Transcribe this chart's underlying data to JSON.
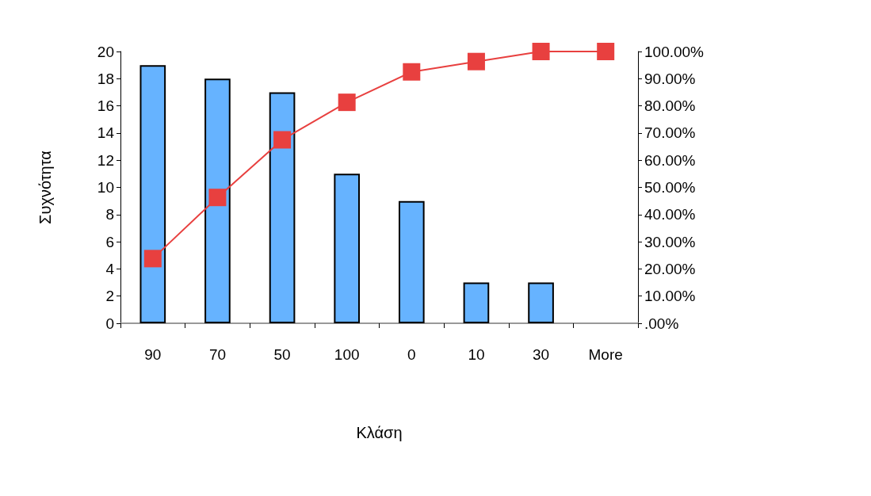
{
  "chart_data": {
    "type": "bar",
    "xlabel": "Κλάση",
    "ylabel": "Συχνότητα",
    "categories": [
      "90",
      "70",
      "50",
      "100",
      "0",
      "10",
      "30",
      "More"
    ],
    "series": [
      {
        "color": "#66b3ff",
        "values": [
          19,
          18,
          17,
          11,
          9,
          3,
          3,
          0
        ]
      },
      {
        "type": "line",
        "axis": "y2",
        "color": "#e8403f",
        "marker": "square",
        "values": [
          23.8,
          46.3,
          67.5,
          81.3,
          92.5,
          96.3,
          100,
          100
        ]
      }
    ],
    "ylim": [
      0,
      20
    ],
    "yticks": [
      0,
      2,
      4,
      6,
      8,
      10,
      12,
      14,
      16,
      18,
      20
    ],
    "y2lim": [
      0,
      100
    ],
    "y2ticks": [
      {
        "value": 0,
        "label": ".00%"
      },
      {
        "value": 10,
        "label": "10.00%"
      },
      {
        "value": 20,
        "label": "20.00%"
      },
      {
        "value": 30,
        "label": "30.00%"
      },
      {
        "value": 40,
        "label": "40.00%"
      },
      {
        "value": 50,
        "label": "50.00%"
      },
      {
        "value": 60,
        "label": "60.00%"
      },
      {
        "value": 70,
        "label": "70.00%"
      },
      {
        "value": 80,
        "label": "80.00%"
      },
      {
        "value": 90,
        "label": "90.00%"
      },
      {
        "value": 100,
        "label": "100.00%"
      }
    ],
    "grid": false
  }
}
